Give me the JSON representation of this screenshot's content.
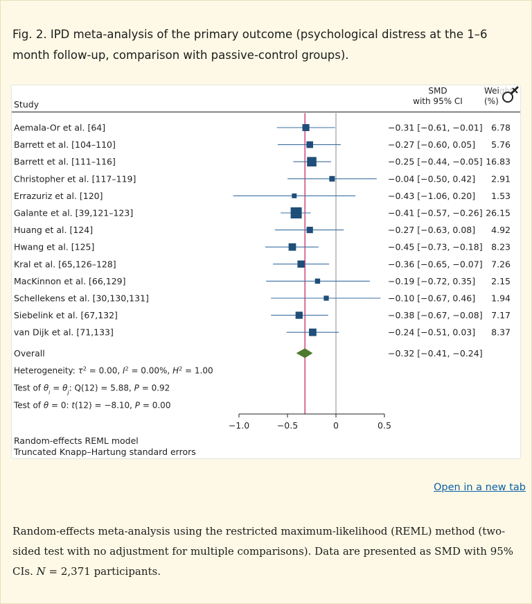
{
  "figure": {
    "caption": "Fig. 2. IPD meta-analysis of the primary outcome (psychological distress at the 1–6 month follow-up, comparison with passive-control groups).",
    "open_link_label": "Open in a new tab",
    "footnote_before_n": "Random-effects meta-analysis using the restricted maximum-likelihood (REML) method (two-sided test with no adjustment for multiple comparisons). Data are presented as SMD with 95% CIs. ",
    "footnote_n_symbol": "N",
    "footnote_after_n": " = 2,371 participants.",
    "zoom_icon": "magnifier-icon"
  },
  "chart_data": {
    "type": "forest",
    "header_study": "Study",
    "header_smd_line1": "SMD",
    "header_smd_line2": "with 95% CI",
    "header_weight_line1": "Weight",
    "header_weight_line2": "(%)",
    "studies": [
      {
        "name": "Aemala-Or et al. [64]",
        "est": -0.31,
        "lo": -0.61,
        "hi": -0.01,
        "ci_text": "−0.31 [−0.61, −0.01]",
        "weight": "6.78"
      },
      {
        "name": "Barrett et al. [104–110]",
        "est": -0.27,
        "lo": -0.6,
        "hi": 0.05,
        "ci_text": "−0.27 [−0.60, 0.05]",
        "weight": "5.76"
      },
      {
        "name": "Barrett et al. [111–116]",
        "est": -0.25,
        "lo": -0.44,
        "hi": -0.05,
        "ci_text": "−0.25 [−0.44, −0.05]",
        "weight": "16.83"
      },
      {
        "name": "Christopher et al. [117–119]",
        "est": -0.04,
        "lo": -0.5,
        "hi": 0.42,
        "ci_text": "−0.04 [−0.50, 0.42]",
        "weight": "2.91"
      },
      {
        "name": "Errazuriz et al. [120]",
        "est": -0.43,
        "lo": -1.06,
        "hi": 0.2,
        "ci_text": "−0.43 [−1.06, 0.20]",
        "weight": "1.53"
      },
      {
        "name": "Galante et al. [39,121–123]",
        "est": -0.41,
        "lo": -0.57,
        "hi": -0.26,
        "ci_text": "−0.41 [−0.57, −0.26]",
        "weight": "26.15"
      },
      {
        "name": "Huang et al. [124]",
        "est": -0.27,
        "lo": -0.63,
        "hi": 0.08,
        "ci_text": "−0.27 [−0.63, 0.08]",
        "weight": "4.92"
      },
      {
        "name": "Hwang et al. [125]",
        "est": -0.45,
        "lo": -0.73,
        "hi": -0.18,
        "ci_text": "−0.45 [−0.73, −0.18]",
        "weight": "8.23"
      },
      {
        "name": "Kral et al. [65,126–128]",
        "est": -0.36,
        "lo": -0.65,
        "hi": -0.07,
        "ci_text": "−0.36 [−0.65, −0.07]",
        "weight": "7.26"
      },
      {
        "name": "MacKinnon et al. [66,129]",
        "est": -0.19,
        "lo": -0.72,
        "hi": 0.35,
        "ci_text": "−0.19 [−0.72, 0.35]",
        "weight": "2.15"
      },
      {
        "name": "Schellekens et al. [30,130,131]",
        "est": -0.1,
        "lo": -0.67,
        "hi": 0.46,
        "ci_text": "−0.10 [−0.67, 0.46]",
        "weight": "1.94"
      },
      {
        "name": "Siebelink et al. [67,132]",
        "est": -0.38,
        "lo": -0.67,
        "hi": -0.08,
        "ci_text": "−0.38 [−0.67, −0.08]",
        "weight": "7.17"
      },
      {
        "name": "van Dijk et al. [71,133]",
        "est": -0.24,
        "lo": -0.51,
        "hi": 0.03,
        "ci_text": "−0.24 [−0.51, 0.03]",
        "weight": "8.37"
      }
    ],
    "overall": {
      "name": "Overall",
      "est": -0.32,
      "lo": -0.41,
      "hi": -0.24,
      "ci_text": "−0.32 [−0.41, −0.24]"
    },
    "heterogeneity": {
      "prefix": "Heterogeneity: ",
      "tau_symbol": "τ",
      "tau_value": " = 0.00, ",
      "i_symbol": "I",
      "i_value": " = 0.00%, ",
      "h_symbol": "H",
      "h_value": " = 1.00",
      "superscript": "2"
    },
    "test_equal": {
      "prefix": "Test of ",
      "theta": "θ",
      "sub_i": "i",
      "equals": " = ",
      "sub_j": "j",
      "q_part": ": Q(12) = 5.88, ",
      "p_symbol": "P",
      "p_value": " = 0.92"
    },
    "test_zero": {
      "prefix": "Test of ",
      "theta": "θ",
      "middle": " = 0: ",
      "t_symbol": "t",
      "t_part": "(12) = −8.10, ",
      "p_symbol": "P",
      "p_value": " = 0.00"
    },
    "x_ticks": [
      -1.0,
      -0.5,
      0,
      0.5
    ],
    "x_tick_labels": [
      "−1.0",
      "−0.5",
      "0",
      "0.5"
    ],
    "x_range": [
      -1.0,
      0.5
    ],
    "null_value": 0,
    "overall_line_value": -0.32,
    "model_note_1": "Random-effects REML model",
    "model_note_2": "Truncated Knapp–Hartung standard errors",
    "colors": {
      "marker": "#1f4e79",
      "ci_line": "#3a6fa0",
      "diamond": "#4e7a2e",
      "overall_line": "#c2185b",
      "null_line": "#888888"
    }
  }
}
